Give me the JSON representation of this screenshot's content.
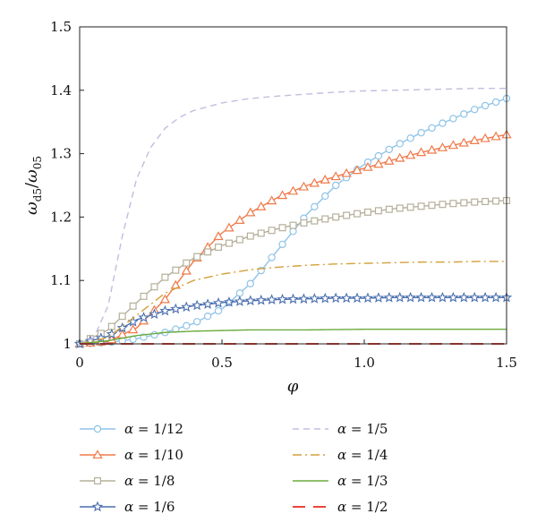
{
  "chart_data": {
    "type": "line",
    "xlabel": "φ",
    "ylabel_main": "ω",
    "ylabel_sub1": "d5",
    "ylabel_slash": "/",
    "ylabel_main2": "ω",
    "ylabel_sub2": "05",
    "xlim": [
      0,
      1.5
    ],
    "ylim": [
      1,
      1.5
    ],
    "xticks": [
      {
        "v": 0,
        "label": "0"
      },
      {
        "v": 0.5,
        "label": "0.5"
      },
      {
        "v": 1.0,
        "label": "1.0"
      },
      {
        "v": 1.5,
        "label": "1.5"
      }
    ],
    "yticks": [
      {
        "v": 1,
        "label": "1"
      },
      {
        "v": 1.1,
        "label": "1.1"
      },
      {
        "v": 1.2,
        "label": "1.2"
      },
      {
        "v": 1.3,
        "label": "1.3"
      },
      {
        "v": 1.4,
        "label": "1.4"
      },
      {
        "v": 1.5,
        "label": "1.5"
      }
    ],
    "legend_placement": "bottom",
    "series": [
      {
        "name": "α = 1/12",
        "color": "#8fc4e8",
        "style": "solid-circle",
        "x": [
          0,
          0.1,
          0.2,
          0.3,
          0.4,
          0.5,
          0.6,
          0.7,
          0.8,
          0.9,
          1.0,
          1.1,
          1.2,
          1.3,
          1.4,
          1.5
        ],
        "y": [
          1.0,
          1.002,
          1.008,
          1.018,
          1.032,
          1.055,
          1.095,
          1.15,
          1.205,
          1.25,
          1.283,
          1.31,
          1.333,
          1.353,
          1.372,
          1.387
        ]
      },
      {
        "name": "α = 1/10",
        "color": "#f07a4a",
        "style": "solid-triangle",
        "x": [
          0,
          0.1,
          0.2,
          0.3,
          0.4,
          0.5,
          0.6,
          0.7,
          0.8,
          0.9,
          1.0,
          1.1,
          1.2,
          1.3,
          1.4,
          1.5
        ],
        "y": [
          1.0,
          1.004,
          1.025,
          1.07,
          1.13,
          1.175,
          1.207,
          1.232,
          1.25,
          1.264,
          1.277,
          1.29,
          1.302,
          1.312,
          1.322,
          1.33
        ]
      },
      {
        "name": "α = 1/8",
        "color": "#b5b09a",
        "style": "solid-square",
        "x": [
          0,
          0.1,
          0.2,
          0.3,
          0.4,
          0.5,
          0.6,
          0.7,
          0.8,
          0.9,
          1.0,
          1.1,
          1.2,
          1.3,
          1.4,
          1.5
        ],
        "y": [
          1.0,
          1.022,
          1.065,
          1.105,
          1.135,
          1.155,
          1.17,
          1.182,
          1.192,
          1.2,
          1.207,
          1.213,
          1.217,
          1.221,
          1.224,
          1.226
        ]
      },
      {
        "name": "α = 1/6",
        "color": "#4a6fad",
        "style": "solid-star",
        "x": [
          0,
          0.1,
          0.2,
          0.3,
          0.4,
          0.5,
          0.6,
          0.7,
          0.8,
          0.9,
          1.0,
          1.1,
          1.2,
          1.3,
          1.4,
          1.5
        ],
        "y": [
          1.0,
          1.012,
          1.038,
          1.052,
          1.06,
          1.065,
          1.068,
          1.07,
          1.071,
          1.072,
          1.072,
          1.073,
          1.073,
          1.073,
          1.073,
          1.073
        ]
      },
      {
        "name": "α = 1/5",
        "color": "#c3bde0",
        "style": "dashed",
        "x": [
          0,
          0.05,
          0.1,
          0.15,
          0.2,
          0.25,
          0.3,
          0.35,
          0.4,
          0.5,
          0.6,
          0.7,
          0.8,
          0.9,
          1.0,
          1.1,
          1.2,
          1.3,
          1.4,
          1.5
        ],
        "y": [
          1.0,
          1.01,
          1.06,
          1.17,
          1.26,
          1.31,
          1.34,
          1.357,
          1.368,
          1.38,
          1.387,
          1.391,
          1.394,
          1.397,
          1.399,
          1.4,
          1.401,
          1.402,
          1.403,
          1.403
        ]
      },
      {
        "name": "α = 1/4",
        "color": "#d4a03a",
        "style": "dashdot",
        "x": [
          0,
          0.1,
          0.2,
          0.3,
          0.4,
          0.5,
          0.6,
          0.7,
          0.8,
          0.9,
          1.0,
          1.1,
          1.2,
          1.3,
          1.4,
          1.5
        ],
        "y": [
          1.0,
          1.01,
          1.045,
          1.08,
          1.1,
          1.11,
          1.117,
          1.121,
          1.124,
          1.126,
          1.127,
          1.128,
          1.129,
          1.129,
          1.13,
          1.13
        ]
      },
      {
        "name": "α = 1/3",
        "color": "#6aab3c",
        "style": "solid",
        "x": [
          0,
          0.1,
          0.2,
          0.3,
          0.4,
          0.5,
          0.6,
          0.8,
          1.0,
          1.2,
          1.5
        ],
        "y": [
          1.0,
          1.005,
          1.013,
          1.018,
          1.02,
          1.021,
          1.022,
          1.022,
          1.023,
          1.023,
          1.023
        ]
      },
      {
        "name": "α = 1/2",
        "color": "#e8453c",
        "style": "longdash",
        "x": [
          0,
          0.5,
          1.0,
          1.5
        ],
        "y": [
          1.0,
          1.0,
          1.0,
          1.0
        ]
      }
    ]
  }
}
